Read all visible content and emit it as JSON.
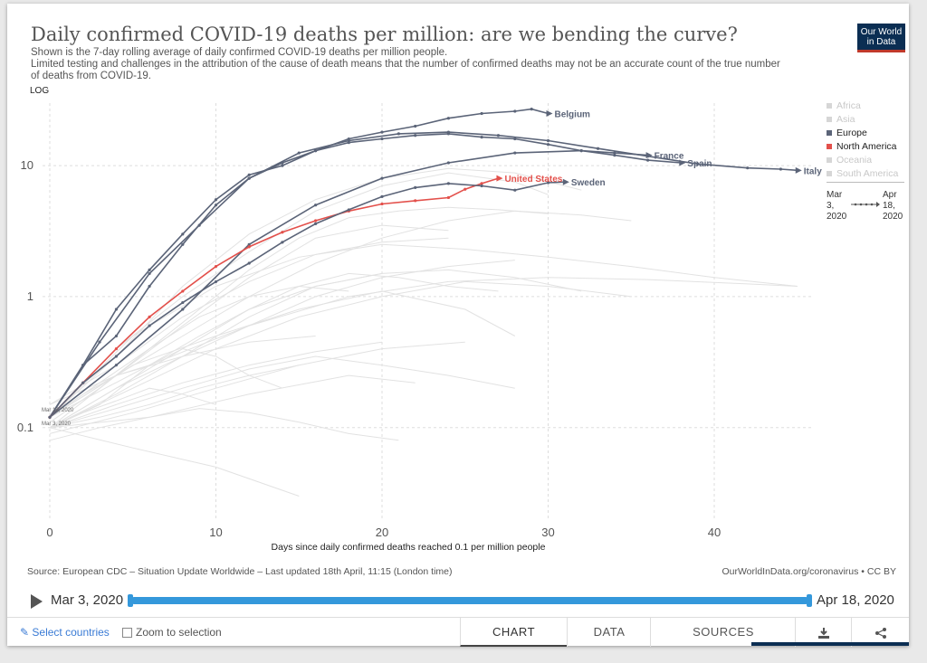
{
  "title": "Daily confirmed COVID-19 deaths per million: are we bending the curve?",
  "subtitle_lines": [
    "Shown is the 7-day rolling average of daily confirmed COVID-19 deaths per million people.",
    "Limited testing and challenges in the attribution of the cause of death means that the number of confirmed deaths may not be an accurate count of the true number",
    "of deaths from COVID-19."
  ],
  "logo": {
    "line1": "Our World",
    "line2": "in Data"
  },
  "scale_button": "LOG",
  "legend": [
    {
      "label": "Africa",
      "color": "#d6d6d6",
      "active": false
    },
    {
      "label": "Asia",
      "color": "#d6d6d6",
      "active": false
    },
    {
      "label": "Europe",
      "color": "#5b6478",
      "active": true
    },
    {
      "label": "North America",
      "color": "#e3504b",
      "active": true
    },
    {
      "label": "Oceania",
      "color": "#d6d6d6",
      "active": false
    },
    {
      "label": "South America",
      "color": "#d6d6d6",
      "active": false
    }
  ],
  "legend_range": {
    "start_l1": "Mar",
    "start_l2": "3,",
    "start_l3": "2020",
    "end_l1": "Apr",
    "end_l2": "18,",
    "end_l3": "2020"
  },
  "start_annotations": [
    "Mar 19, 2020",
    "Mar 3, 2020"
  ],
  "source": "Source: European CDC – Situation Update Worldwide – Last updated 18th April, 11:15 (London time)",
  "owid_link": "OurWorldInData.org/coronavirus • CC BY",
  "timeline": {
    "start": "Mar 3, 2020",
    "end": "Apr 18, 2020"
  },
  "footer": {
    "select": "Select countries",
    "zoom": "Zoom to selection",
    "tabs": [
      "CHART",
      "DATA",
      "SOURCES"
    ]
  },
  "chart_data": {
    "type": "line",
    "title": "Daily confirmed COVID-19 deaths per million: are we bending the curve?",
    "xlabel": "Days since daily confirmed deaths reached 0.1 per million people",
    "ylabel": "",
    "xlim": [
      0,
      46
    ],
    "ylim": [
      0.02,
      30
    ],
    "yscale": "log",
    "xticks": [
      0,
      10,
      20,
      30,
      40
    ],
    "yticks": [
      0.1,
      1,
      10
    ],
    "yticklabels": [
      "0.1",
      "1",
      "10"
    ],
    "grid": true,
    "legend_position": "right",
    "highlighted": [
      {
        "label": "Belgium",
        "color": "#5b6478",
        "x": [
          0,
          2,
          4,
          6,
          8,
          10,
          12,
          14,
          16,
          18,
          20,
          22,
          24,
          26,
          28,
          29,
          30
        ],
        "y": [
          0.12,
          0.3,
          0.8,
          1.6,
          3,
          5.5,
          8.5,
          10,
          13,
          16,
          18,
          20,
          23,
          25,
          26,
          27,
          25
        ]
      },
      {
        "label": "Italy",
        "color": "#5b6478",
        "x": [
          0,
          3,
          6,
          9,
          12,
          15,
          18,
          21,
          24,
          27,
          30,
          33,
          36,
          39,
          42,
          44,
          45
        ],
        "y": [
          0.12,
          0.45,
          1.5,
          3.5,
          8,
          12.5,
          15.5,
          17.5,
          18,
          17,
          15.5,
          13.5,
          11.8,
          10.3,
          9.6,
          9.4,
          9.2
        ]
      },
      {
        "label": "Spain",
        "color": "#5b6478",
        "x": [
          0,
          2,
          4,
          6,
          8,
          10,
          12,
          14,
          16,
          18,
          20,
          22,
          24,
          26,
          28,
          30,
          32,
          34,
          36,
          38
        ],
        "y": [
          0.12,
          0.3,
          0.5,
          1.2,
          2.5,
          5,
          8,
          10.5,
          13,
          15,
          16,
          17,
          17.5,
          16.5,
          16,
          14.5,
          13,
          12,
          11,
          10.5
        ]
      },
      {
        "label": "France",
        "color": "#5b6478",
        "x": [
          0,
          4,
          8,
          12,
          16,
          20,
          24,
          28,
          32,
          34,
          36
        ],
        "y": [
          0.12,
          0.3,
          0.8,
          2.5,
          5,
          8,
          10.5,
          12.5,
          13,
          12.5,
          12
        ]
      },
      {
        "label": "United States",
        "color": "#e3504b",
        "x": [
          0,
          2,
          4,
          6,
          8,
          10,
          12,
          14,
          16,
          18,
          20,
          22,
          24,
          25,
          26,
          27
        ],
        "y": [
          0.12,
          0.22,
          0.4,
          0.7,
          1.1,
          1.7,
          2.4,
          3.1,
          3.8,
          4.5,
          5.1,
          5.4,
          5.7,
          6.6,
          7.3,
          8
        ]
      },
      {
        "label": "Sweden",
        "color": "#5b6478",
        "x": [
          0,
          2,
          4,
          6,
          8,
          10,
          12,
          14,
          16,
          18,
          20,
          22,
          24,
          26,
          28,
          30,
          31
        ],
        "y": [
          0.12,
          0.22,
          0.35,
          0.6,
          0.9,
          1.3,
          1.8,
          2.6,
          3.6,
          4.6,
          5.8,
          6.8,
          7.3,
          7,
          6.5,
          7.4,
          7.5
        ]
      }
    ],
    "background_series": [
      {
        "x": [
          0,
          4,
          8,
          12,
          16,
          20,
          24
        ],
        "y": [
          0.15,
          0.3,
          0.7,
          1.3,
          2.1,
          2.6,
          2.8
        ]
      },
      {
        "x": [
          0,
          4,
          8,
          12,
          16,
          20,
          24,
          28,
          32
        ],
        "y": [
          0.12,
          0.35,
          1.2,
          3,
          5.5,
          8,
          9.5,
          8.8,
          6.5
        ]
      },
      {
        "x": [
          0,
          4,
          8,
          12,
          16,
          20
        ],
        "y": [
          0.1,
          0.2,
          0.4,
          0.8,
          1.2,
          1.5
        ]
      },
      {
        "x": [
          0,
          5,
          10,
          15,
          20,
          25,
          30,
          35
        ],
        "y": [
          0.1,
          0.2,
          0.4,
          0.7,
          1,
          1.3,
          1.2,
          1
        ]
      },
      {
        "x": [
          0,
          4,
          8,
          12,
          16
        ],
        "y": [
          0.15,
          0.25,
          0.35,
          0.45,
          0.5
        ]
      },
      {
        "x": [
          0,
          3,
          6,
          9,
          12,
          15
        ],
        "y": [
          0.1,
          0.12,
          0.15,
          0.2,
          0.25,
          0.3
        ]
      },
      {
        "x": [
          0,
          5,
          10,
          15,
          20,
          25,
          30,
          35,
          40,
          45
        ],
        "y": [
          0.12,
          0.5,
          1.2,
          2,
          2.5,
          2.3,
          2,
          1.7,
          1.4,
          1.2
        ]
      },
      {
        "x": [
          0,
          3,
          6,
          9,
          12,
          15,
          18,
          21
        ],
        "y": [
          0.08,
          0.1,
          0.12,
          0.14,
          0.13,
          0.11,
          0.09,
          0.08
        ]
      },
      {
        "x": [
          0,
          4,
          8,
          12,
          16,
          20,
          24
        ],
        "y": [
          0.1,
          0.25,
          0.6,
          1.4,
          2.8,
          3.5,
          3.2
        ]
      },
      {
        "x": [
          0,
          5,
          10,
          15
        ],
        "y": [
          0.1,
          0.07,
          0.05,
          0.03
        ]
      },
      {
        "x": [
          0,
          4,
          8,
          12,
          16,
          20,
          24,
          28,
          32
        ],
        "y": [
          0.1,
          0.18,
          0.35,
          0.7,
          1.2,
          1.5,
          1.6,
          1.4,
          1.1
        ]
      },
      {
        "x": [
          0,
          6,
          12,
          18,
          24,
          30,
          36,
          42,
          45
        ],
        "y": [
          0.12,
          0.3,
          0.6,
          1,
          1.3,
          1.4,
          1.35,
          1.25,
          1.2
        ]
      },
      {
        "x": [
          0,
          4,
          8,
          12,
          16,
          20,
          24,
          28,
          30
        ],
        "y": [
          0.12,
          0.4,
          1,
          2.2,
          4.5,
          7,
          8.8,
          7.5,
          6
        ]
      },
      {
        "x": [
          0,
          3,
          6,
          9,
          12,
          15,
          18,
          21,
          24,
          27
        ],
        "y": [
          0.1,
          0.15,
          0.3,
          0.5,
          0.8,
          1.2,
          1.5,
          1.4,
          1.2,
          1.1
        ]
      },
      {
        "x": [
          0,
          2,
          4,
          6,
          8,
          10,
          12,
          14
        ],
        "y": [
          0.12,
          0.18,
          0.25,
          0.3,
          0.4,
          0.35,
          0.25,
          0.2
        ]
      },
      {
        "x": [
          0,
          4,
          8,
          12,
          16,
          20
        ],
        "y": [
          0.1,
          0.15,
          0.22,
          0.3,
          0.38,
          0.45
        ]
      },
      {
        "x": [
          0,
          5,
          10,
          15,
          20,
          25,
          28
        ],
        "y": [
          0.12,
          0.3,
          0.5,
          0.8,
          1.1,
          0.8,
          0.5
        ]
      },
      {
        "x": [
          0,
          3,
          6,
          9,
          12,
          15,
          18,
          21,
          24,
          27,
          30
        ],
        "y": [
          0.11,
          0.2,
          0.4,
          0.8,
          1.6,
          2.8,
          4,
          4.5,
          4.8,
          4.6,
          4.3
        ]
      },
      {
        "x": [
          0,
          4,
          8,
          12,
          16,
          20,
          24,
          28,
          32,
          35
        ],
        "y": [
          0.12,
          0.25,
          0.5,
          1,
          1.8,
          2.8,
          3.8,
          4.5,
          4.2,
          3.8
        ]
      },
      {
        "x": [
          0,
          6,
          12,
          18,
          22
        ],
        "y": [
          0.1,
          0.12,
          0.18,
          0.25,
          0.22
        ]
      },
      {
        "x": [
          0,
          2,
          4,
          6,
          8,
          10
        ],
        "y": [
          0.1,
          0.13,
          0.16,
          0.2,
          0.18,
          0.15
        ]
      },
      {
        "x": [
          0,
          5,
          10,
          15,
          20,
          25
        ],
        "y": [
          0.09,
          0.13,
          0.2,
          0.3,
          0.4,
          0.45
        ]
      },
      {
        "x": [
          0,
          4,
          8,
          12,
          16,
          20,
          24,
          28
        ],
        "y": [
          0.1,
          0.14,
          0.2,
          0.28,
          0.35,
          0.3,
          0.25,
          0.2
        ]
      },
      {
        "x": [
          0,
          3,
          6,
          9,
          12,
          15,
          18
        ],
        "y": [
          0.12,
          0.22,
          0.4,
          0.7,
          1,
          1.2,
          1.1
        ]
      },
      {
        "x": [
          0,
          4,
          8,
          12,
          16,
          20,
          24,
          28
        ],
        "y": [
          0.1,
          0.2,
          0.35,
          0.6,
          1,
          1.4,
          1.7,
          1.9
        ]
      }
    ]
  }
}
